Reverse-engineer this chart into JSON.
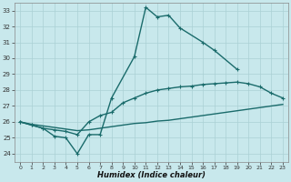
{
  "xlabel": "Humidex (Indice chaleur)",
  "bg_color": "#c8e8ec",
  "grid_color": "#aad0d4",
  "line_color": "#1a6b6b",
  "xlim": [
    -0.5,
    23.5
  ],
  "ylim": [
    23.5,
    33.5
  ],
  "xticks": [
    0,
    1,
    2,
    3,
    4,
    5,
    6,
    7,
    8,
    9,
    10,
    11,
    12,
    13,
    14,
    15,
    16,
    17,
    18,
    19,
    20,
    21,
    22,
    23
  ],
  "yticks": [
    24,
    25,
    26,
    27,
    28,
    29,
    30,
    31,
    32,
    33
  ],
  "line1_x": [
    0,
    1,
    2,
    3,
    4,
    5,
    6,
    7,
    8,
    10,
    11,
    12,
    13,
    14,
    16,
    17,
    19
  ],
  "line1_y": [
    26.0,
    25.8,
    25.6,
    25.1,
    25.0,
    24.0,
    25.2,
    25.2,
    27.5,
    30.1,
    33.2,
    32.6,
    32.7,
    31.9,
    31.0,
    30.5,
    29.3
  ],
  "line2_x": [
    0,
    1,
    2,
    3,
    4,
    5,
    6,
    7,
    8,
    9,
    10,
    11,
    12,
    13,
    14,
    15,
    16,
    17,
    18,
    19,
    20,
    21,
    22,
    23
  ],
  "line2_y": [
    26.0,
    25.8,
    25.6,
    25.5,
    25.4,
    25.2,
    26.0,
    26.4,
    26.6,
    27.2,
    27.5,
    27.8,
    28.0,
    28.1,
    28.2,
    28.25,
    28.35,
    28.4,
    28.45,
    28.5,
    28.4,
    28.2,
    27.8,
    27.5
  ],
  "line3_x": [
    0,
    1,
    2,
    3,
    4,
    5,
    6,
    7,
    8,
    9,
    10,
    11,
    12,
    13,
    14,
    15,
    16,
    17,
    18,
    19,
    20,
    21,
    22,
    23
  ],
  "line3_y": [
    26.0,
    25.85,
    25.75,
    25.65,
    25.55,
    25.45,
    25.5,
    25.6,
    25.7,
    25.8,
    25.9,
    25.95,
    26.05,
    26.1,
    26.2,
    26.3,
    26.4,
    26.5,
    26.6,
    26.7,
    26.8,
    26.9,
    27.0,
    27.1
  ]
}
